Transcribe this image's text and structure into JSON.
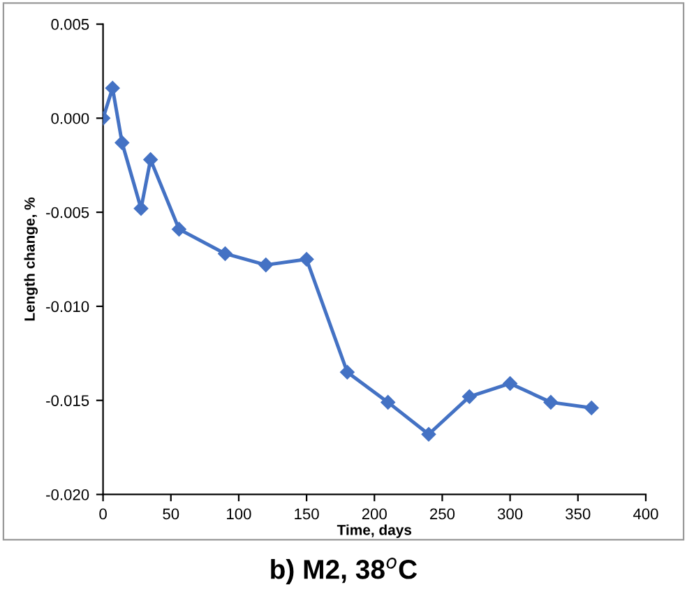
{
  "chart_data": {
    "type": "line",
    "title": "b) M2, 38$^{o}$C",
    "xlabel": "Time, days",
    "ylabel": "Length change, %",
    "x": [
      0,
      7,
      14,
      28,
      35,
      56,
      90,
      120,
      150,
      180,
      210,
      240,
      270,
      300,
      330,
      360
    ],
    "series": [
      {
        "color": "#4472c4",
        "values": [
          0.0,
          0.0016,
          -0.0013,
          -0.0048,
          -0.0022,
          -0.0059,
          -0.0072,
          -0.0078,
          -0.0075,
          -0.0135,
          -0.0151,
          -0.0168,
          -0.0148,
          -0.0141,
          -0.0151,
          -0.0154
        ]
      }
    ],
    "xlim": [
      0,
      400
    ],
    "xticks": [
      0,
      50,
      100,
      150,
      200,
      250,
      300,
      350,
      400
    ],
    "ylim": [
      -0.02,
      0.005
    ],
    "yticks": [
      {
        "value": 0.005,
        "label": "0.005"
      },
      {
        "value": 0.0,
        "label": "0.000"
      },
      {
        "value": -0.005,
        "label": "-0.005"
      },
      {
        "value": -0.01,
        "label": "-0.010"
      },
      {
        "value": -0.015,
        "label": "-0.015"
      },
      {
        "value": -0.02,
        "label": "-0.020"
      }
    ],
    "marker": "diamond",
    "line_style": "solid",
    "grid": false
  }
}
